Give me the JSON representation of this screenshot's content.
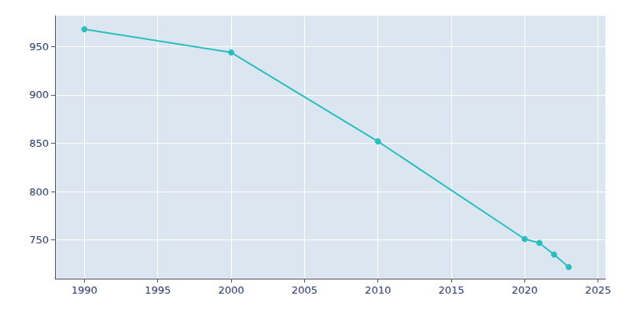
{
  "chart_data": {
    "type": "line",
    "x": [
      1990,
      2000,
      2010,
      2020,
      2021,
      2022,
      2023
    ],
    "values": [
      968,
      944,
      852,
      751,
      747,
      735,
      722
    ],
    "color": "#2abfbf",
    "marker": "circle",
    "xlim": [
      1988,
      2025.5
    ],
    "ylim": [
      710,
      982
    ],
    "xticks": [
      1990,
      1995,
      2000,
      2005,
      2010,
      2015,
      2020,
      2025
    ],
    "yticks": [
      750,
      800,
      850,
      900,
      950
    ],
    "grid": true
  }
}
